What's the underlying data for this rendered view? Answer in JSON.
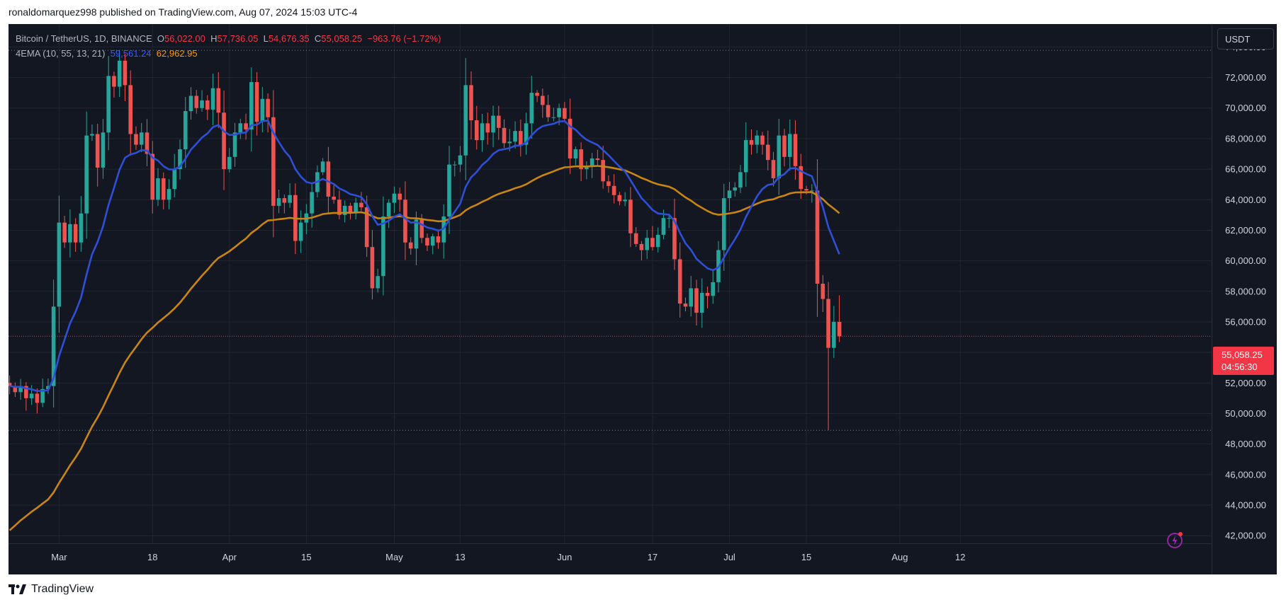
{
  "header": {
    "publisher_line": "ronaldomarquez998 published on TradingView.com, Aug 07, 2024 15:03 UTC-4"
  },
  "legend": {
    "symbol": "Bitcoin / TetherUS, 1D, BINANCE",
    "o_label": "O",
    "o_value": "56,022.00",
    "h_label": "H",
    "h_value": "57,736.05",
    "l_label": "L",
    "l_value": "54,676.35",
    "c_label": "C",
    "c_value": "55,058.25",
    "change": "−963.76 (−1.72%)",
    "indicator_name": "4EMA (10, 55, 13, 21)",
    "ema_fast_value": "59,561.24",
    "ema_slow_value": "62,962.95"
  },
  "currency_badge": "USDT",
  "price_tag": {
    "price": "55,058.25",
    "countdown": "04:56:30"
  },
  "footer": {
    "brand": "TradingView"
  },
  "colors": {
    "background": "#131722",
    "up": "#26a69a",
    "down": "#ef5350",
    "ema_fast": "#2f4fd6",
    "ema_slow": "#c98512",
    "price_line": "#f23645",
    "grid": "#232632",
    "axis_text": "#d1d4dc"
  },
  "chart_data": {
    "type": "candlestick",
    "title": "Bitcoin / TetherUS, 1D, BINANCE",
    "start_date": "2024-02-21",
    "ylim": [
      41500,
      75500
    ],
    "y_ticks": [
      "42,000.00",
      "44,000.00",
      "46,000.00",
      "48,000.00",
      "50,000.00",
      "52,000.00",
      "54,000.00",
      "56,000.00",
      "58,000.00",
      "60,000.00",
      "62,000.00",
      "64,000.00",
      "66,000.00",
      "68,000.00",
      "70,000.00",
      "72,000.00",
      "74,000.00"
    ],
    "x_ticks": [
      {
        "label": "Mar",
        "date": "2024-03-01"
      },
      {
        "label": "18",
        "date": "2024-03-18"
      },
      {
        "label": "Apr",
        "date": "2024-04-01"
      },
      {
        "label": "15",
        "date": "2024-04-15"
      },
      {
        "label": "May",
        "date": "2024-05-01"
      },
      {
        "label": "13",
        "date": "2024-05-13"
      },
      {
        "label": "Jun",
        "date": "2024-06-01"
      },
      {
        "label": "17",
        "date": "2024-06-17"
      },
      {
        "label": "Jul",
        "date": "2024-07-01"
      },
      {
        "label": "15",
        "date": "2024-07-15"
      },
      {
        "label": "Aug",
        "date": "2024-08-01"
      },
      {
        "label": "12",
        "date": "2024-08-12"
      }
    ],
    "dotted_levels": [
      73780,
      48900
    ],
    "last_price": 55058.25,
    "closes": [
      51800,
      51400,
      51800,
      51000,
      51300,
      50700,
      51600,
      51800,
      57000,
      62500,
      61200,
      62400,
      61200,
      63100,
      68200,
      68300,
      66100,
      68400,
      72100,
      71400,
      73100,
      71500,
      68300,
      67600,
      68400,
      67000,
      64000,
      65400,
      64000,
      64700,
      66000,
      67300,
      69800,
      70800,
      70000,
      70500,
      69900,
      71300,
      69700,
      66000,
      66800,
      68400,
      69000,
      68600,
      71700,
      69100,
      70600,
      69400,
      63600,
      64100,
      63800,
      64300,
      61300,
      62500,
      63100,
      64500,
      65800,
      66500,
      64200,
      64000,
      63000,
      63600,
      63100,
      63800,
      63500,
      60900,
      58200,
      59000,
      62900,
      63800,
      64400,
      64000,
      61200,
      60800,
      62700,
      61500,
      61000,
      61600,
      61200,
      62900,
      66300,
      66300,
      66900,
      71500,
      69200,
      67900,
      69000,
      68400,
      69500,
      68700,
      67700,
      67800,
      68500,
      67600,
      69000,
      71000,
      70800,
      70200,
      69400,
      69400,
      70000,
      69300,
      66700,
      67300,
      66000,
      66200,
      66700,
      66600,
      65200,
      64900,
      64300,
      63900,
      64000,
      61800,
      61100,
      60700,
      61500,
      60900,
      61700,
      62800,
      62800,
      60100,
      57200,
      57000,
      58200,
      56600,
      57900,
      57700,
      58600,
      60700,
      64100,
      64600,
      64800,
      65800,
      67900,
      67600,
      68200,
      67600,
      66600,
      65400,
      68200,
      66800,
      68300,
      66200,
      64700,
      64600,
      64600,
      58500,
      57500,
      54300,
      56000,
      55058
    ]
  }
}
